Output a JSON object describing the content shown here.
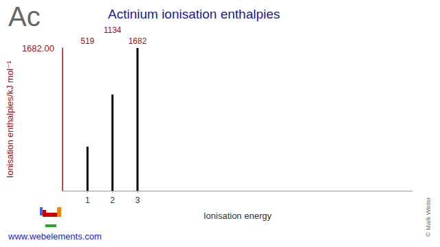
{
  "chart_data": {
    "type": "bar",
    "title": "Actinium ionisation enthalpies",
    "annotations": [
      "Ac",
      "www.webelements.com",
      "© Mark Winter"
    ],
    "x_label": "Ionisation energy",
    "y_label": "Ionisation enthalpies/kJ mol⁻¹",
    "x": [
      1,
      2,
      3
    ],
    "values": [
      519,
      1134,
      1682
    ],
    "color": "#000000",
    "xlim": [
      0,
      14
    ],
    "xticks": [
      1,
      2,
      3
    ],
    "ylim": [
      0,
      1682
    ],
    "yticks": [
      {
        "value": 1682,
        "label": "1682.00"
      }
    ],
    "grid": false,
    "data_labels": true
  }
}
